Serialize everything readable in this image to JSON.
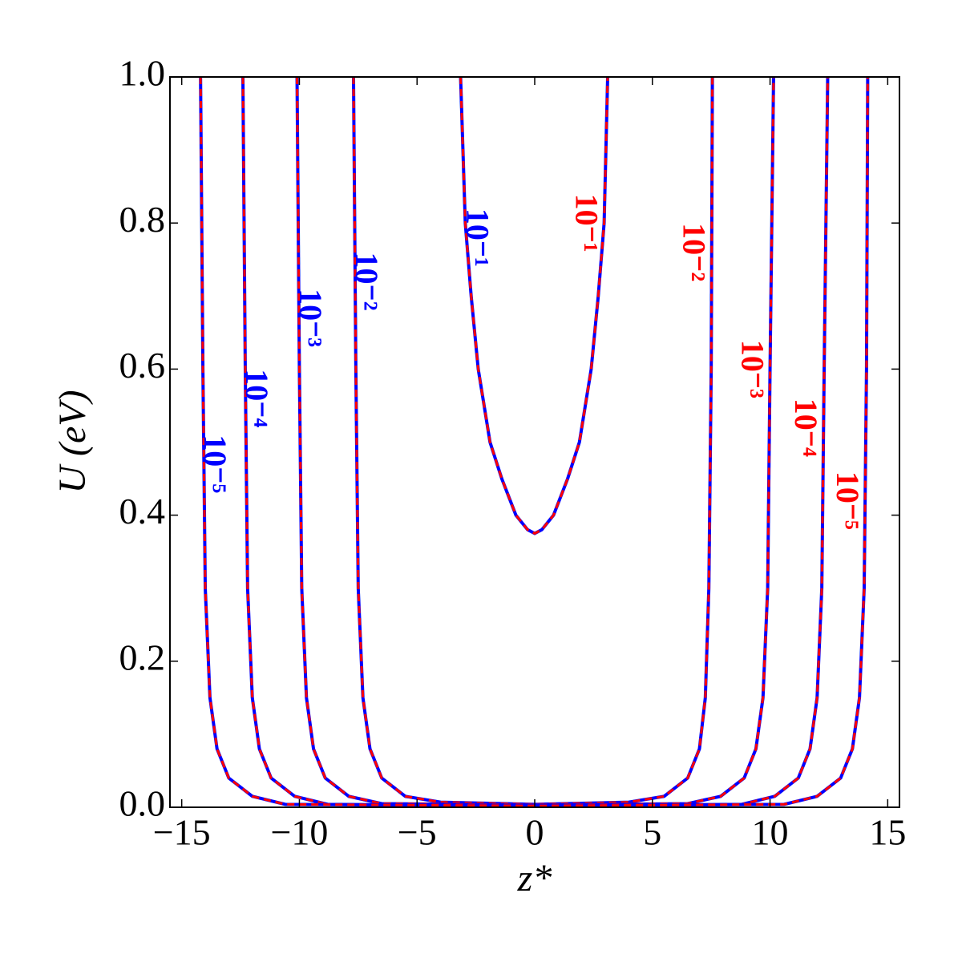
{
  "chart_data": {
    "type": "contour",
    "xlabel": "z*",
    "ylabel": "U (eV)",
    "xlim": [
      -15.5,
      15.5
    ],
    "ylim": [
      0,
      1
    ],
    "xticks": [
      {
        "value": -15,
        "label": "−15"
      },
      {
        "value": -10,
        "label": "−10"
      },
      {
        "value": -5,
        "label": "−5"
      },
      0,
      5,
      10,
      15
    ],
    "yticks": [
      {
        "value": 0,
        "label": "0.0"
      },
      0.2,
      0.4,
      0.6,
      0.8,
      {
        "value": 1,
        "label": "1.0"
      }
    ],
    "solid_color": "#0000ff",
    "dashed_color": "#ff0000",
    "contours": [
      {
        "label": "10⁻¹",
        "x": [
          -3.15,
          -2.95,
          -2.7,
          -2.4,
          -1.9,
          -1.4,
          -0.8,
          -0.3,
          0,
          0.3,
          0.8,
          1.4,
          1.9,
          2.4,
          2.7,
          2.95,
          3.1
        ],
        "y": [
          1,
          0.8,
          0.7,
          0.6,
          0.5,
          0.45,
          0.4,
          0.38,
          0.375,
          0.38,
          0.4,
          0.45,
          0.5,
          0.6,
          0.7,
          0.8,
          1
        ]
      },
      {
        "label": "10⁻²",
        "x": [
          -7.7,
          -7.6,
          -7.5,
          -7.3,
          -7.0,
          -6.5,
          -5.5,
          -4,
          0,
          4,
          5.5,
          6.5,
          7.0,
          7.25,
          7.4,
          7.5,
          7.55
        ],
        "y": [
          1,
          0.6,
          0.3,
          0.15,
          0.08,
          0.04,
          0.015,
          0.007,
          0.004,
          0.007,
          0.015,
          0.04,
          0.08,
          0.15,
          0.3,
          0.6,
          1
        ]
      },
      {
        "label": "10⁻³",
        "x": [
          -10.1,
          -10,
          -9.9,
          -9.7,
          -9.4,
          -8.9,
          -7.9,
          -6.5,
          0,
          6.5,
          7.9,
          8.9,
          9.4,
          9.7,
          9.9,
          10,
          10.15
        ],
        "y": [
          1,
          0.6,
          0.3,
          0.15,
          0.08,
          0.04,
          0.015,
          0.005,
          0.003,
          0.005,
          0.015,
          0.04,
          0.08,
          0.15,
          0.3,
          0.6,
          1
        ]
      },
      {
        "label": "10⁻⁴",
        "x": [
          -12.4,
          -12.3,
          -12.2,
          -12,
          -11.7,
          -11.2,
          -10.2,
          -8.8,
          0,
          8.8,
          10.2,
          11.2,
          11.7,
          12,
          12.2,
          12.3,
          12.45
        ],
        "y": [
          1,
          0.6,
          0.3,
          0.15,
          0.08,
          0.04,
          0.015,
          0.004,
          0.002,
          0.004,
          0.015,
          0.04,
          0.08,
          0.15,
          0.3,
          0.6,
          1
        ]
      },
      {
        "label": "10⁻⁵",
        "x": [
          -14.2,
          -14.1,
          -14,
          -13.8,
          -13.5,
          -13,
          -12,
          -10.6,
          0,
          10.6,
          12,
          13,
          13.5,
          13.8,
          14,
          14.1,
          14.15
        ],
        "y": [
          1,
          0.6,
          0.3,
          0.15,
          0.08,
          0.04,
          0.015,
          0.004,
          0.002,
          0.004,
          0.015,
          0.04,
          0.08,
          0.15,
          0.3,
          0.6,
          1
        ]
      }
    ]
  }
}
